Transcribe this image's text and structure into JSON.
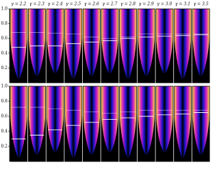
{
  "chart_data": [
    {
      "type": "violin-panels",
      "titles": [
        "γ = 2.2",
        "γ = 2.3",
        "γ = 2.4",
        "γ = 2.5",
        "γ = 2.6",
        "γ = 2.7",
        "γ = 2.8",
        "γ = 2.9",
        "γ = 3.0",
        "γ = 3.1",
        "γ = 3.5"
      ],
      "median": [
        0.48,
        0.5,
        0.5,
        0.53,
        0.55,
        0.57,
        0.6,
        0.62,
        0.63,
        0.64,
        0.65
      ],
      "dotted": [
        0.68,
        0.68,
        0.67,
        0.66,
        0.62,
        0.6,
        0.62,
        0.66,
        0.66,
        0.66,
        0.66
      ],
      "ylim": [
        0,
        1
      ],
      "yticks": [
        0.2,
        0.4,
        0.6,
        0.8,
        {
          "value": 1,
          "label": "1.0"
        }
      ],
      "colormap": [
        "#000000",
        "#1414c8",
        "#d21ec3",
        "#ffe03c"
      ]
    },
    {
      "type": "violin-panels",
      "median": [
        0.3,
        0.35,
        0.42,
        0.48,
        0.52,
        0.56,
        0.58,
        0.6,
        0.62,
        0.63,
        0.65
      ],
      "dotted": [
        0.72,
        0.72,
        0.7,
        0.68,
        0.66,
        0.64,
        0.66,
        0.68,
        0.68,
        0.68,
        0.68
      ],
      "ylim": [
        0,
        1
      ],
      "yticks": [
        0.2,
        0.4,
        0.6,
        0.8,
        {
          "value": 1,
          "label": "1.0"
        }
      ],
      "colormap": [
        "#000000",
        "#1414c8",
        "#d21ec3",
        "#ffe03c"
      ]
    }
  ]
}
